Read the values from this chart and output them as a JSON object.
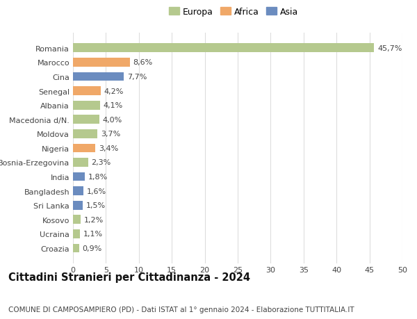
{
  "categories": [
    "Romania",
    "Marocco",
    "Cina",
    "Senegal",
    "Albania",
    "Macedonia d/N.",
    "Moldova",
    "Nigeria",
    "Bosnia-Erzegovina",
    "India",
    "Bangladesh",
    "Sri Lanka",
    "Kosovo",
    "Ucraina",
    "Croazia"
  ],
  "values": [
    45.7,
    8.6,
    7.7,
    4.2,
    4.1,
    4.0,
    3.7,
    3.4,
    2.3,
    1.8,
    1.6,
    1.5,
    1.2,
    1.1,
    0.9
  ],
  "labels": [
    "45,7%",
    "8,6%",
    "7,7%",
    "4,2%",
    "4,1%",
    "4,0%",
    "3,7%",
    "3,4%",
    "2,3%",
    "1,8%",
    "1,6%",
    "1,5%",
    "1,2%",
    "1,1%",
    "0,9%"
  ],
  "colors": [
    "#b5c98e",
    "#f0a868",
    "#6b8cbf",
    "#f0a868",
    "#b5c98e",
    "#b5c98e",
    "#b5c98e",
    "#f0a868",
    "#b5c98e",
    "#6b8cbf",
    "#6b8cbf",
    "#6b8cbf",
    "#b5c98e",
    "#b5c98e",
    "#b5c98e"
  ],
  "legend_labels": [
    "Europa",
    "Africa",
    "Asia"
  ],
  "legend_colors": [
    "#b5c98e",
    "#f0a868",
    "#6b8cbf"
  ],
  "title": "Cittadini Stranieri per Cittadinanza - 2024",
  "subtitle": "COMUNE DI CAMPOSAMPIERO (PD) - Dati ISTAT al 1° gennaio 2024 - Elaborazione TUTTITALIA.IT",
  "xlim": [
    0,
    50
  ],
  "xticks": [
    0,
    5,
    10,
    15,
    20,
    25,
    30,
    35,
    40,
    45,
    50
  ],
  "background_color": "#ffffff",
  "grid_color": "#dddddd",
  "bar_height": 0.62,
  "label_fontsize": 8.0,
  "title_fontsize": 10.5,
  "subtitle_fontsize": 7.5,
  "tick_fontsize": 8.0,
  "legend_fontsize": 9.0
}
